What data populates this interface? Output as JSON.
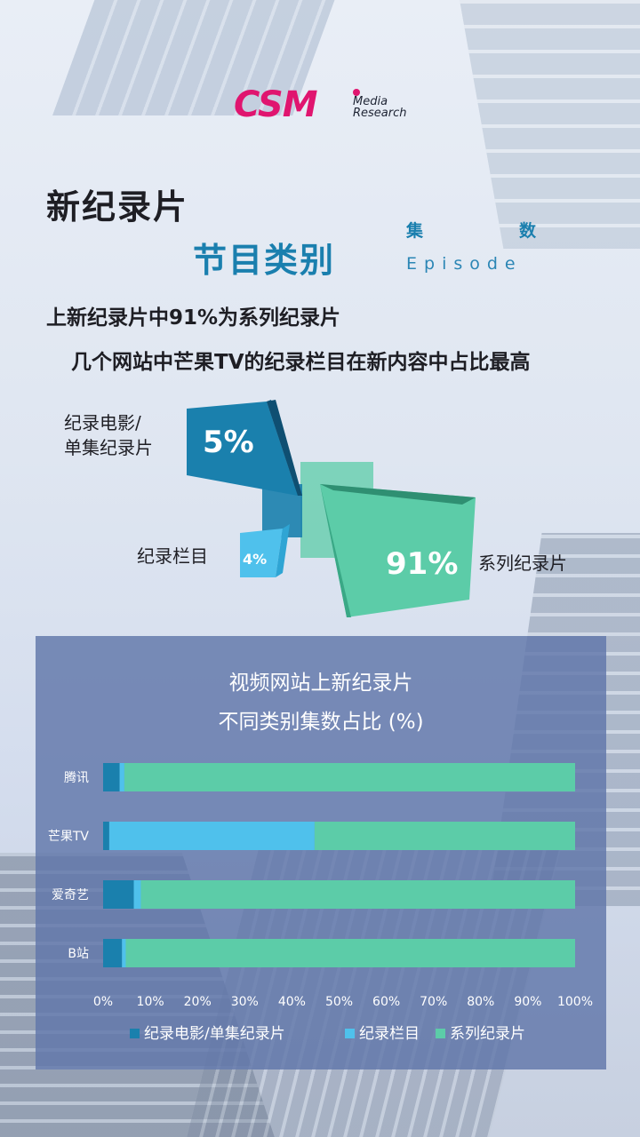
{
  "logo": {
    "mark": "CSM",
    "sub1": "Media",
    "sub2": "Research"
  },
  "header": {
    "title_line1": "新纪录片",
    "title_line2": "节目类别",
    "metric_cn_1": "集",
    "metric_cn_2": "数",
    "metric_en": "Episode"
  },
  "subtitle": {
    "line1": "上新纪录片中91%为系列纪录片",
    "line2": "几个网站中芒果TV的纪录栏目在新内容中占比最高"
  },
  "summary": {
    "film_label_1": "纪录电影/",
    "film_label_2": "单集纪录片",
    "film_value": "5%",
    "column_label": "纪录栏目",
    "column_value": "4%",
    "series_label": "系列纪录片",
    "series_value": "91%"
  },
  "colors": {
    "film": "#1a80ad",
    "column": "#4fc1ec",
    "series": "#5ccca8",
    "panel": "#6076aa"
  },
  "chart_data": {
    "type": "bar",
    "orientation": "horizontal",
    "stacked": true,
    "title_line1": "视频网站上新纪录片",
    "title_line2": "不同类别集数占比 (%)",
    "categories": [
      "腾讯",
      "芒果TV",
      "爱奇艺",
      "B站"
    ],
    "series": [
      {
        "name": "纪录电影/单集纪录片",
        "color": "#1a80ad",
        "values": [
          3.5,
          1.3,
          6.5,
          4.0
        ]
      },
      {
        "name": "纪录栏目",
        "color": "#4fc1ec",
        "values": [
          1.0,
          43.5,
          1.5,
          0.8
        ]
      },
      {
        "name": "系列纪录片",
        "color": "#5ccca8",
        "values": [
          95.5,
          55.2,
          92.0,
          95.2
        ]
      }
    ],
    "xlim": [
      0,
      100
    ],
    "x_ticks": [
      "0%",
      "10%",
      "20%",
      "30%",
      "40%",
      "50%",
      "60%",
      "70%",
      "80%",
      "90%",
      "100%"
    ],
    "gridlines": false,
    "legend_position": "bottom"
  }
}
